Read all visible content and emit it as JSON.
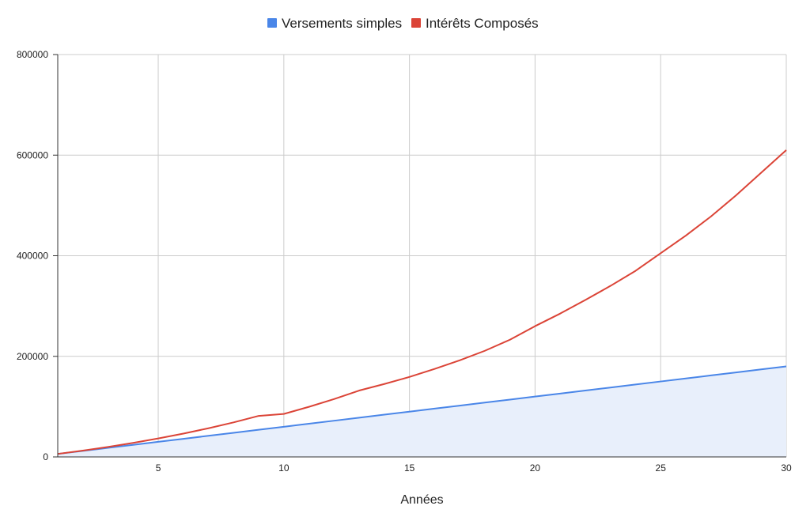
{
  "chart_data": {
    "type": "area",
    "x": [
      1,
      2,
      3,
      4,
      5,
      6,
      7,
      8,
      9,
      10,
      11,
      12,
      13,
      14,
      15,
      16,
      17,
      18,
      19,
      20,
      21,
      22,
      23,
      24,
      25,
      26,
      27,
      28,
      29,
      30
    ],
    "series": [
      {
        "name": "Versements simples",
        "color": "#4a86e8",
        "fill": "#e8effb",
        "values": [
          6000,
          12000,
          18000,
          24000,
          30000,
          36000,
          42000,
          48000,
          54000,
          60000,
          66000,
          72000,
          78000,
          84000,
          90000,
          96000,
          102000,
          108000,
          114000,
          120000,
          126000,
          132000,
          138000,
          144000,
          150000,
          156000,
          162000,
          168000,
          174000,
          180000
        ]
      },
      {
        "name": "Intérêts Composés",
        "color": "#db4437",
        "values": [
          6000,
          12600,
          19900,
          27900,
          36700,
          46400,
          57000,
          68700,
          81600,
          85500,
          99600,
          115000,
          132000,
          145000,
          159000,
          175000,
          192000,
          211000,
          233000,
          260000,
          285000,
          312000,
          340000,
          370000,
          405000,
          440000,
          478000,
          520000,
          565000,
          610000
        ]
      }
    ],
    "xlabel": "Années",
    "ylabel": "",
    "xticks": [
      5,
      10,
      15,
      20,
      25,
      30
    ],
    "yticks": [
      0,
      200000,
      400000,
      600000,
      800000
    ],
    "xlim": [
      1,
      30
    ],
    "ylim": [
      0,
      800000
    ],
    "grid": true,
    "legend_position": "top-center"
  }
}
